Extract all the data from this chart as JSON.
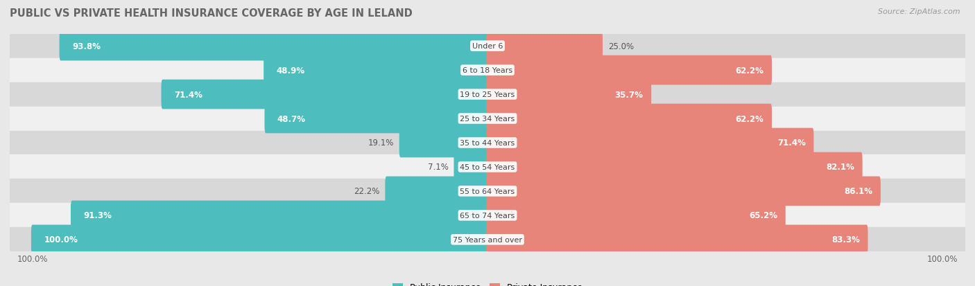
{
  "title": "PUBLIC VS PRIVATE HEALTH INSURANCE COVERAGE BY AGE IN LELAND",
  "source": "Source: ZipAtlas.com",
  "categories": [
    "Under 6",
    "6 to 18 Years",
    "19 to 25 Years",
    "25 to 34 Years",
    "35 to 44 Years",
    "45 to 54 Years",
    "55 to 64 Years",
    "65 to 74 Years",
    "75 Years and over"
  ],
  "public_values": [
    93.8,
    48.9,
    71.4,
    48.7,
    19.1,
    7.1,
    22.2,
    91.3,
    100.0
  ],
  "private_values": [
    25.0,
    62.2,
    35.7,
    62.2,
    71.4,
    82.1,
    86.1,
    65.2,
    83.3
  ],
  "public_color": "#4dbdbe",
  "private_color": "#e8857a",
  "bg_color": "#e8e8e8",
  "row_dark_color": "#d8d8d8",
  "row_light_color": "#f0f0f0",
  "bar_height": 0.62,
  "title_fontsize": 10.5,
  "label_fontsize": 8.5,
  "category_fontsize": 8.0,
  "legend_fontsize": 9,
  "source_fontsize": 8
}
